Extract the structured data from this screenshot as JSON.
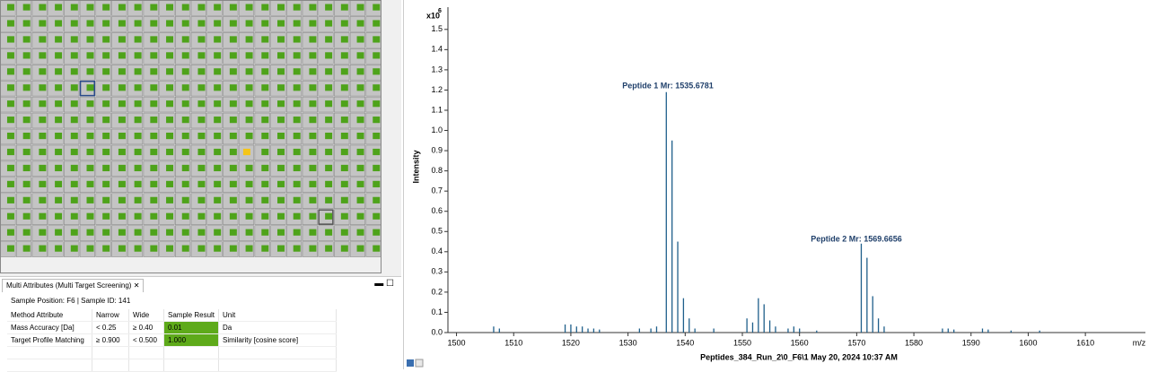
{
  "panel": {
    "tab_title": "Multi Attributes (Multi Target Screening)",
    "sample_position": "Sample Position: F6",
    "sample_id": "Sample ID: 141",
    "table": {
      "headers": [
        "Method Attribute",
        "Narrow",
        "Wide",
        "Sample Result",
        "Unit"
      ],
      "rows": [
        [
          "Mass Accuracy [Da]",
          "<  0.25",
          "≥  0.40",
          "0.01",
          "Da"
        ],
        [
          "Target Profile Matching",
          "≥  0.900",
          "<  0.500",
          "1.000",
          "Similarity [cosine score]"
        ]
      ]
    }
  },
  "chart_data": {
    "type": "stem",
    "y_label": "Intensity",
    "y_multiplier": "x10",
    "y_exponent": "6",
    "x_unit": "m/z",
    "x_label": "Peptides_384_Run_2\\0_F6\\1 May 20, 2024 10:37 AM",
    "annotations": [
      "Peptide 1 Mr: 1535.6781",
      "Peptide 2 Mr: 1569.6656"
    ],
    "xlim": [
      1498.5,
      1620.5
    ],
    "ylim": [
      0,
      1.61
    ],
    "xticks": [
      1500,
      1510,
      1520,
      1530,
      1540,
      1550,
      1560,
      1570,
      1580,
      1590,
      1600,
      1610
    ],
    "yticks": [
      {
        "value": 0,
        "label": "0.0"
      },
      0.1,
      0.2,
      0.3,
      0.4,
      0.5,
      0.6,
      0.7,
      0.8,
      0.9,
      {
        "value": 1,
        "label": "1.0"
      },
      1.1,
      1.2,
      1.3,
      1.4,
      1.5
    ],
    "series": [
      {
        "color": "#1f5f8b",
        "x": [
          1506.5,
          1507.5,
          1519,
          1520,
          1521,
          1522,
          1523,
          1524,
          1525,
          1532,
          1534,
          1535,
          1536.7,
          1537.7,
          1538.7,
          1539.7,
          1540.7,
          1541.7,
          1545,
          1550.8,
          1551.8,
          1552.8,
          1553.8,
          1554.8,
          1555.8,
          1558,
          1559,
          1560,
          1563,
          1570.8,
          1571.8,
          1572.8,
          1573.8,
          1574.8,
          1585,
          1586,
          1587,
          1592,
          1593,
          1597,
          1602
        ],
        "values": [
          0.03,
          0.02,
          0.04,
          0.04,
          0.03,
          0.03,
          0.02,
          0.02,
          0.015,
          0.02,
          0.02,
          0.03,
          1.19,
          0.95,
          0.45,
          0.17,
          0.07,
          0.02,
          0.02,
          0.07,
          0.05,
          0.17,
          0.14,
          0.06,
          0.03,
          0.02,
          0.03,
          0.02,
          0.01,
          0.44,
          0.37,
          0.18,
          0.07,
          0.03,
          0.02,
          0.02,
          0.015,
          0.02,
          0.015,
          0.01,
          0.01
        ]
      }
    ]
  }
}
